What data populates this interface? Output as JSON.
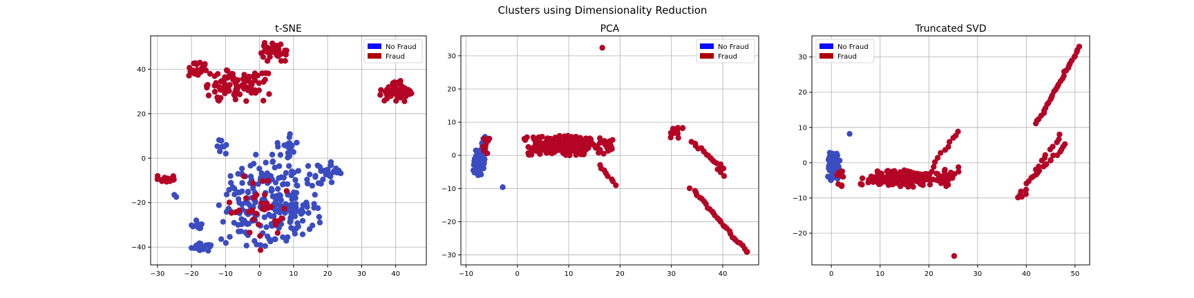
{
  "figure": {
    "suptitle": "Clusters using Dimensionality Reduction"
  },
  "colors": {
    "no_fraud": "#0A0AFF",
    "fraud": "#AF0000",
    "no_fraud_points": "#3B4CC0",
    "fraud_points": "#B40426",
    "grid": "#b0b0b0"
  },
  "chart_data": [
    {
      "type": "scatter",
      "title": "t-SNE",
      "xlim": [
        -32,
        49
      ],
      "ylim": [
        -48,
        55
      ],
      "xticks": [
        -30,
        -20,
        -10,
        0,
        10,
        20,
        30,
        40
      ],
      "yticks": [
        -40,
        -20,
        0,
        20,
        40
      ],
      "grid": true,
      "legend": {
        "position": "top-right",
        "entries": [
          "No Fraud",
          "Fraud"
        ]
      },
      "series": [
        {
          "name": "No Fraud",
          "clusters": [
            {
              "cx": 3,
              "cy": -20,
              "rx": 15,
              "ry": 22,
              "n": 240
            },
            {
              "cx": -17,
              "cy": -40,
              "rx": 3,
              "ry": 2,
              "n": 18
            },
            {
              "cx": -18,
              "cy": -30,
              "rx": 2.5,
              "ry": 3,
              "n": 10
            },
            {
              "cx": 20,
              "cy": -6,
              "rx": 4,
              "ry": 6,
              "n": 30
            },
            {
              "cx": 8,
              "cy": 5,
              "rx": 3,
              "ry": 6,
              "n": 20
            },
            {
              "cx": -11,
              "cy": 6,
              "rx": 1.5,
              "ry": 4,
              "n": 8
            },
            {
              "cx": -25,
              "cy": -17,
              "rx": 1,
              "ry": 1,
              "n": 2
            }
          ]
        },
        {
          "name": "Fraud",
          "clusters": [
            {
              "cx": -7,
              "cy": 32,
              "rx": 11,
              "ry": 8,
              "n": 90
            },
            {
              "cx": -18,
              "cy": 40,
              "rx": 3,
              "ry": 4,
              "n": 20
            },
            {
              "cx": 5,
              "cy": 48,
              "rx": 5,
              "ry": 5,
              "n": 35
            },
            {
              "cx": 40,
              "cy": 30,
              "rx": 5,
              "ry": 5,
              "n": 60
            },
            {
              "cx": -27,
              "cy": -10,
              "rx": 3,
              "ry": 2,
              "n": 16
            },
            {
              "cx": 0,
              "cy": -25,
              "rx": 10,
              "ry": 18,
              "n": 35
            }
          ]
        }
      ]
    },
    {
      "type": "scatter",
      "title": "PCA",
      "xlim": [
        -11,
        47
      ],
      "ylim": [
        -33,
        36
      ],
      "xticks": [
        -10,
        0,
        10,
        20,
        30,
        40
      ],
      "yticks": [
        -30,
        -20,
        -10,
        0,
        10,
        20,
        30
      ],
      "grid": true,
      "legend": {
        "position": "top-right",
        "entries": [
          "No Fraud",
          "Fraud"
        ]
      },
      "series": [
        {
          "name": "No Fraud",
          "clusters": [
            {
              "cx": -7.5,
              "cy": -2,
              "rx": 1.2,
              "ry": 4,
              "n": 90
            },
            {
              "cx": -6.5,
              "cy": 4,
              "rx": 0.8,
              "ry": 2.5,
              "n": 10
            },
            {
              "cx": -3,
              "cy": -9.5,
              "rx": 0.3,
              "ry": 0.3,
              "n": 1
            }
          ]
        },
        {
          "name": "Fraud",
          "clusters": [
            {
              "cx": 8,
              "cy": 3,
              "rx": 8,
              "ry": 3,
              "n": 200
            },
            {
              "cx": -6,
              "cy": 3,
              "rx": 1,
              "ry": 3,
              "n": 12
            },
            {
              "cx": 16,
              "cy": 3,
              "rx": 4,
              "ry": 2.5,
              "n": 30
            },
            {
              "cx": 31,
              "cy": 7,
              "rx": 2,
              "ry": 2,
              "n": 14
            },
            {
              "cx": 16.5,
              "cy": 32.5,
              "rx": 0.2,
              "ry": 0.2,
              "n": 1
            }
          ],
          "lines": [
            {
              "from": [
                34,
                4
              ],
              "to": [
                40,
                -4
              ],
              "n": 16
            },
            {
              "from": [
                34,
                -10
              ],
              "to": [
                45,
                -29.5
              ],
              "n": 30
            },
            {
              "from": [
                16,
                -3
              ],
              "to": [
                19,
                -9
              ],
              "n": 8
            },
            {
              "from": [
                39,
                -4
              ],
              "to": [
                40,
                -6
              ],
              "n": 3
            }
          ]
        }
      ]
    },
    {
      "type": "scatter",
      "title": "Truncated SVD",
      "xlim": [
        -4,
        53
      ],
      "ylim": [
        -29,
        36
      ],
      "xticks": [
        0,
        10,
        20,
        30,
        40,
        50
      ],
      "yticks": [
        -20,
        -10,
        0,
        10,
        20,
        30
      ],
      "grid": true,
      "legend": {
        "position": "top-left",
        "entries": [
          "No Fraud",
          "Fraud"
        ]
      },
      "series": [
        {
          "name": "No Fraud",
          "clusters": [
            {
              "cx": 0.5,
              "cy": -1,
              "rx": 1.2,
              "ry": 4,
              "n": 90
            },
            {
              "cx": 3.5,
              "cy": 8.5,
              "rx": 0.5,
              "ry": 0.5,
              "n": 1
            }
          ]
        },
        {
          "name": "Fraud",
          "clusters": [
            {
              "cx": 15,
              "cy": -4.5,
              "rx": 9,
              "ry": 2.5,
              "n": 170
            },
            {
              "cx": 2,
              "cy": -4,
              "rx": 1,
              "ry": 3,
              "n": 12
            },
            {
              "cx": 24,
              "cy": -4,
              "rx": 2.5,
              "ry": 3,
              "n": 18
            },
            {
              "cx": 25,
              "cy": -26.5,
              "rx": 0.2,
              "ry": 0.2,
              "n": 1
            },
            {
              "cx": 39,
              "cy": -9,
              "rx": 2,
              "ry": 1.5,
              "n": 6
            }
          ],
          "lines": [
            {
              "from": [
                42,
                11
              ],
              "to": [
                51,
                33
              ],
              "n": 30
            },
            {
              "from": [
                40,
                -6
              ],
              "to": [
                48,
                5
              ],
              "n": 18
            },
            {
              "from": [
                42,
                -2
              ],
              "to": [
                47,
                8
              ],
              "n": 10
            },
            {
              "from": [
                21,
                -1
              ],
              "to": [
                26,
                9
              ],
              "n": 10
            }
          ]
        }
      ]
    }
  ]
}
